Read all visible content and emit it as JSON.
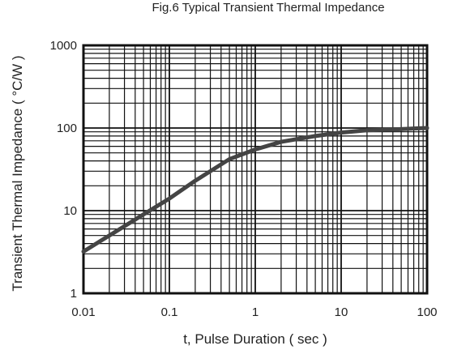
{
  "chart_data": {
    "type": "line",
    "title": "Fig.6  Typical Transient Thermal Impedance",
    "xlabel": "t, Pulse Duration ( sec )",
    "ylabel": "Transient Thermal Impedance ( °C/W )",
    "xscale": "log",
    "yscale": "log",
    "xlim": [
      0.01,
      100
    ],
    "ylim": [
      1,
      1000
    ],
    "grid": true,
    "x_tick_labels": [
      "0.01",
      "0.1",
      "1",
      "10",
      "100"
    ],
    "y_tick_labels": [
      "1",
      "10",
      "100",
      "1000"
    ],
    "series": [
      {
        "x": [
          0.01,
          0.02,
          0.05,
          0.1,
          0.2,
          0.5,
          1,
          2,
          5,
          10,
          20,
          50,
          100
        ],
        "y": [
          3.2,
          5.0,
          9.0,
          14.0,
          23.0,
          42.0,
          55.0,
          68.0,
          80.0,
          88.0,
          94.0,
          97.0,
          100.0
        ]
      }
    ]
  }
}
